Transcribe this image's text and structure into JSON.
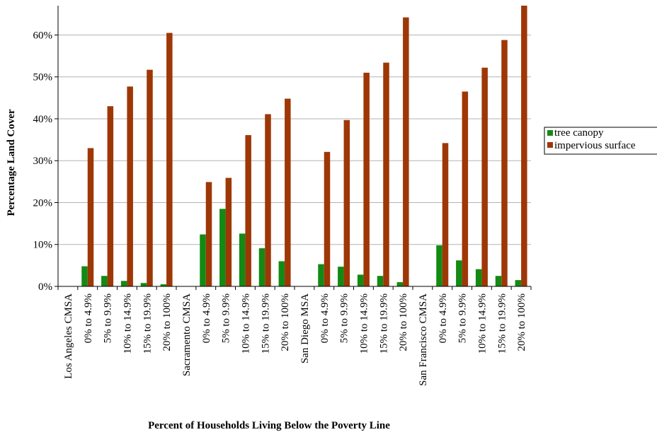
{
  "chart_data": {
    "type": "bar",
    "ylabel": "Percentage Land Cover",
    "xlabel": "Percent of Households Living Below the Poverty Line",
    "ylim": [
      0,
      67
    ],
    "yticks": [
      0,
      10,
      20,
      30,
      40,
      50,
      60
    ],
    "ytick_labels": [
      "0%",
      "10%",
      "20%",
      "30%",
      "40%",
      "50%",
      "60%"
    ],
    "grid": true,
    "legend_position": "right",
    "categories": [
      "Los Angeles CMSA",
      "0% to 4.9%",
      "5% to 9.9%",
      "10% to 14.9%",
      "15% to 19.9%",
      "20% to 100%",
      "Sacramento CMSA",
      "0% to 4.9%",
      "5% to 9.9%",
      "10% to 14.9%",
      "15% to 19.9%",
      "20% to 100%",
      "San Diego MSA",
      "0% to 4.9%",
      "5% to 9.9%",
      "10% to 14.9%",
      "15% to 19.9%",
      "20% to 100%",
      "San Francisco CMSA",
      "0% to 4.9%",
      "5% to 9.9%",
      "10% to 14.9%",
      "15% to 19.9%",
      "20% to 100%"
    ],
    "series": [
      {
        "name": "tree canopy",
        "color": "#138a13",
        "values": [
          null,
          4.8,
          2.5,
          1.3,
          0.8,
          0.5,
          null,
          12.4,
          18.5,
          12.6,
          9.1,
          6.0,
          null,
          5.3,
          4.7,
          2.8,
          2.5,
          1.0,
          null,
          9.8,
          6.2,
          4.1,
          2.5,
          1.5
        ]
      },
      {
        "name": "impervious surface",
        "color": "#9e3706",
        "values": [
          null,
          33.0,
          43.0,
          47.7,
          51.7,
          60.5,
          null,
          24.9,
          25.9,
          36.1,
          41.1,
          44.8,
          null,
          32.1,
          39.7,
          51.0,
          53.4,
          64.2,
          null,
          34.2,
          46.5,
          52.2,
          58.8,
          67.0
        ]
      }
    ]
  }
}
